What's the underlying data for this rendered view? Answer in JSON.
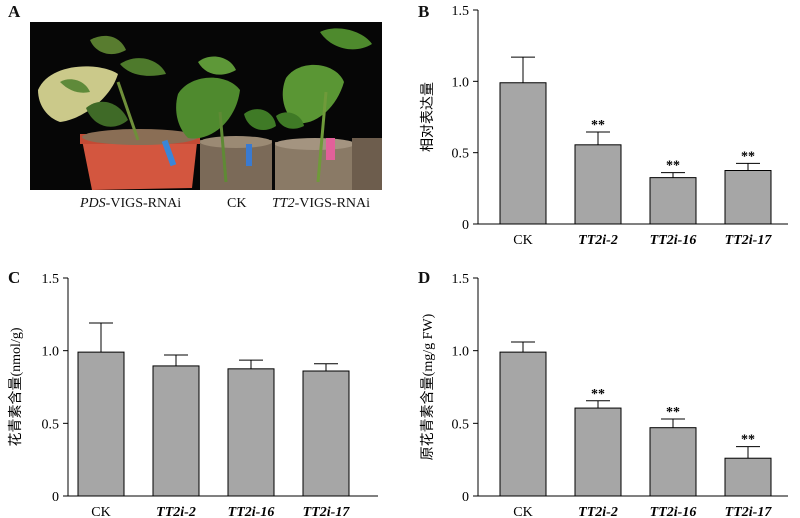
{
  "panel_a": {
    "letter": "A",
    "captions": [
      {
        "italic": "PDS",
        "rest": "-VIGS-RNAi"
      },
      {
        "italic": "",
        "rest": "CK"
      },
      {
        "italic": "TT2",
        "rest": "-VIGS-RNAi"
      }
    ]
  },
  "chart_data": [
    {
      "letter": "B",
      "type": "bar",
      "categories": [
        "CK",
        "TT2i-2",
        "TT2i-16",
        "TT2i-17"
      ],
      "values": [
        0.99,
        0.555,
        0.325,
        0.375
      ],
      "errors": [
        0.18,
        0.09,
        0.035,
        0.05
      ],
      "significance": [
        "",
        "**",
        "**",
        "**"
      ],
      "ylabel": "相对表达量",
      "ylim": [
        0,
        1.5
      ],
      "yticks": [
        "0",
        "0.5",
        "1.0",
        "1.5"
      ],
      "color": "#a6a6a6"
    },
    {
      "letter": "C",
      "type": "bar",
      "categories": [
        "CK",
        "TT2i-2",
        "TT2i-16",
        "TT2i-17"
      ],
      "values": [
        0.99,
        0.895,
        0.875,
        0.86
      ],
      "errors": [
        0.2,
        0.075,
        0.06,
        0.05
      ],
      "significance": [
        "",
        "",
        "",
        ""
      ],
      "ylabel": "花青素含量(nmol/g)",
      "ylim": [
        0,
        1.5
      ],
      "yticks": [
        "0",
        "0.5",
        "1.0",
        "1.5"
      ],
      "color": "#a6a6a6"
    },
    {
      "letter": "D",
      "type": "bar",
      "categories": [
        "CK",
        "TT2i-2",
        "TT2i-16",
        "TT2i-17"
      ],
      "values": [
        0.99,
        0.605,
        0.47,
        0.26
      ],
      "errors": [
        0.07,
        0.05,
        0.06,
        0.08
      ],
      "significance": [
        "",
        "**",
        "**",
        "**"
      ],
      "ylabel": "原花青素含量(mg/g FW)",
      "ylim": [
        0,
        1.5
      ],
      "yticks": [
        "0",
        "0.5",
        "1.0",
        "1.5"
      ],
      "color": "#a6a6a6"
    }
  ]
}
